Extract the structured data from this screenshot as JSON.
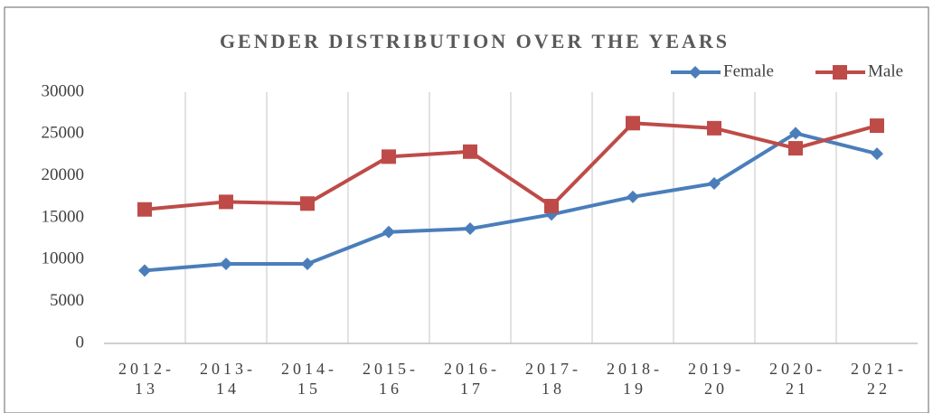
{
  "chart_data": {
    "type": "line",
    "title": "GENDER DISTRIBUTION OVER THE YEARS",
    "categories": [
      "2012-13",
      "2013-14",
      "2014-15",
      "2015-16",
      "2016-17",
      "2017-18",
      "2018-19",
      "2019-20",
      "2020-21",
      "2021-22"
    ],
    "series": [
      {
        "name": "Female",
        "color": "#4a7ebb",
        "marker": "diamond",
        "values": [
          8700,
          9500,
          9500,
          13300,
          13700,
          15400,
          17500,
          19100,
          25100,
          22650
        ]
      },
      {
        "name": "Male",
        "color": "#be4b48",
        "marker": "square",
        "values": [
          16000,
          16900,
          16700,
          22300,
          22900,
          16400,
          26300,
          25700,
          23300,
          26000
        ]
      }
    ],
    "ylim": [
      0,
      30000
    ],
    "yticks": [
      0,
      5000,
      10000,
      15000,
      20000,
      25000,
      30000
    ],
    "grid": true,
    "legend": "top-right"
  }
}
